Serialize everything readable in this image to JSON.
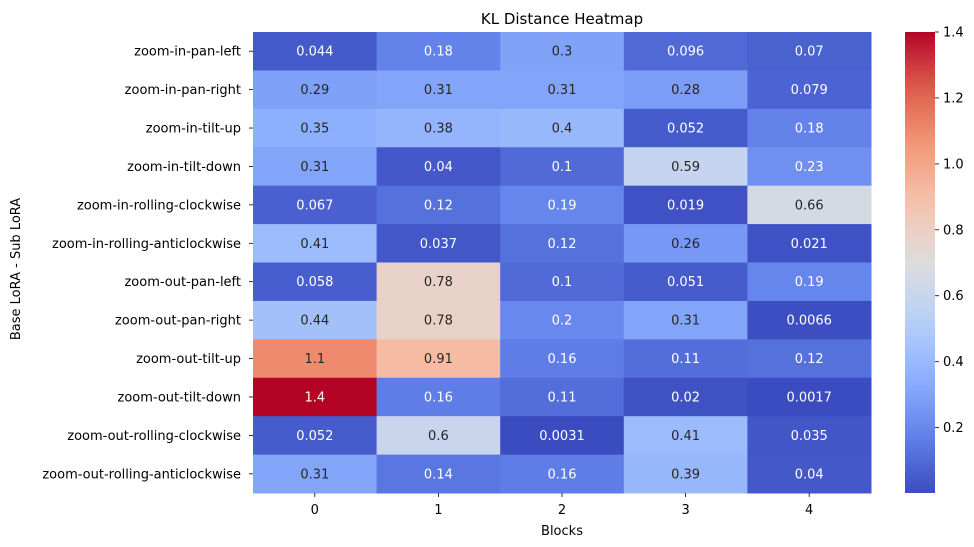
{
  "chart_data": {
    "type": "heatmap",
    "title": "KL Distance Heatmap",
    "xlabel": "Blocks",
    "ylabel": "Base LoRA - Sub LoRA",
    "x_categories": [
      "0",
      "1",
      "2",
      "3",
      "4"
    ],
    "y_categories": [
      "zoom-in-pan-left",
      "zoom-in-pan-right",
      "zoom-in-tilt-up",
      "zoom-in-tilt-down",
      "zoom-in-rolling-clockwise",
      "zoom-in-rolling-anticlockwise",
      "zoom-out-pan-left",
      "zoom-out-pan-right",
      "zoom-out-tilt-up",
      "zoom-out-tilt-down",
      "zoom-out-rolling-clockwise",
      "zoom-out-rolling-anticlockwise"
    ],
    "values": [
      [
        0.044,
        0.18,
        0.3,
        0.096,
        0.07
      ],
      [
        0.29,
        0.31,
        0.31,
        0.28,
        0.079
      ],
      [
        0.35,
        0.38,
        0.4,
        0.052,
        0.18
      ],
      [
        0.31,
        0.04,
        0.1,
        0.59,
        0.23
      ],
      [
        0.067,
        0.12,
        0.19,
        0.019,
        0.66
      ],
      [
        0.41,
        0.037,
        0.12,
        0.26,
        0.021
      ],
      [
        0.058,
        0.78,
        0.1,
        0.051,
        0.19
      ],
      [
        0.44,
        0.78,
        0.2,
        0.31,
        0.0066
      ],
      [
        1.1,
        0.91,
        0.16,
        0.11,
        0.12
      ],
      [
        1.4,
        0.16,
        0.11,
        0.02,
        0.0017
      ],
      [
        0.052,
        0.6,
        0.0031,
        0.41,
        0.035
      ],
      [
        0.31,
        0.14,
        0.16,
        0.39,
        0.04
      ]
    ],
    "colormap": "coolwarm",
    "vmin": 0.0017,
    "vmax": 1.4,
    "colorbar_ticks": [
      0.2,
      0.4,
      0.6,
      0.8,
      1.0,
      1.2,
      1.4
    ],
    "colorbar_tick_labels": [
      "0.2",
      "0.4",
      "0.6",
      "0.8",
      "1.0",
      "1.2",
      "1.4"
    ],
    "annotations": "cell values shown in each cell",
    "grid": false
  }
}
